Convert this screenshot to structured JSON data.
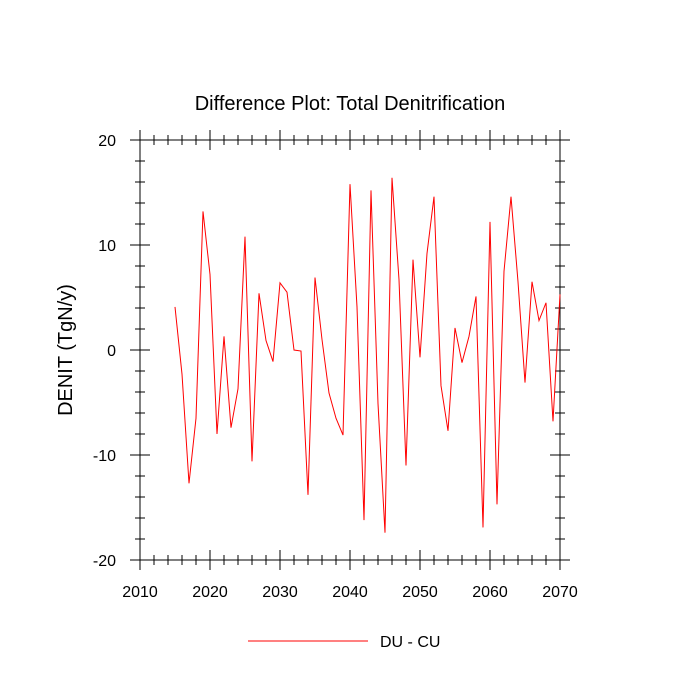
{
  "chart_data": {
    "type": "line",
    "title": "Difference Plot: Total Denitrification",
    "xlabel": "",
    "ylabel": "DENIT  (TgN/y)",
    "xlim": [
      2010,
      2070
    ],
    "ylim": [
      -20,
      20
    ],
    "x_major_ticks": [
      2010,
      2020,
      2030,
      2040,
      2050,
      2060,
      2070
    ],
    "x_minor_step": 2,
    "y_major_ticks": [
      -20,
      -10,
      0,
      10,
      20
    ],
    "y_minor_step": 2,
    "grid": false,
    "legend_position": "bottom-center",
    "x": [
      2015,
      2016,
      2017,
      2018,
      2019,
      2020,
      2021,
      2022,
      2023,
      2024,
      2025,
      2026,
      2027,
      2028,
      2029,
      2030,
      2031,
      2032,
      2033,
      2034,
      2035,
      2036,
      2037,
      2038,
      2039,
      2040,
      2041,
      2042,
      2043,
      2044,
      2045,
      2046,
      2047,
      2048,
      2049,
      2050,
      2051,
      2052,
      2053,
      2054,
      2055,
      2056,
      2057,
      2058,
      2059,
      2060,
      2061,
      2062,
      2063,
      2064,
      2065,
      2066,
      2067,
      2068,
      2069,
      2070
    ],
    "series": [
      {
        "name": "DU - CU",
        "color": "#ff0000",
        "values": [
          4.1,
          -2.3,
          -12.7,
          -6.5,
          13.2,
          7.2,
          -8.0,
          1.3,
          -7.4,
          -3.7,
          10.8,
          -10.6,
          5.4,
          0.9,
          -1.1,
          6.4,
          5.5,
          0.0,
          -0.1,
          -13.8,
          6.9,
          1.0,
          -4.1,
          -6.5,
          -8.1,
          15.8,
          4.1,
          -16.2,
          15.2,
          -5.1,
          -17.4,
          16.4,
          6.7,
          -11.0,
          8.6,
          -0.7,
          9.2,
          14.6,
          -3.4,
          -7.7,
          2.1,
          -1.2,
          1.3,
          5.1,
          -16.9,
          12.2,
          -14.7,
          7.5,
          14.6,
          6.5,
          -3.1,
          6.5,
          2.8,
          4.5,
          -6.8,
          5.3
        ]
      }
    ]
  }
}
